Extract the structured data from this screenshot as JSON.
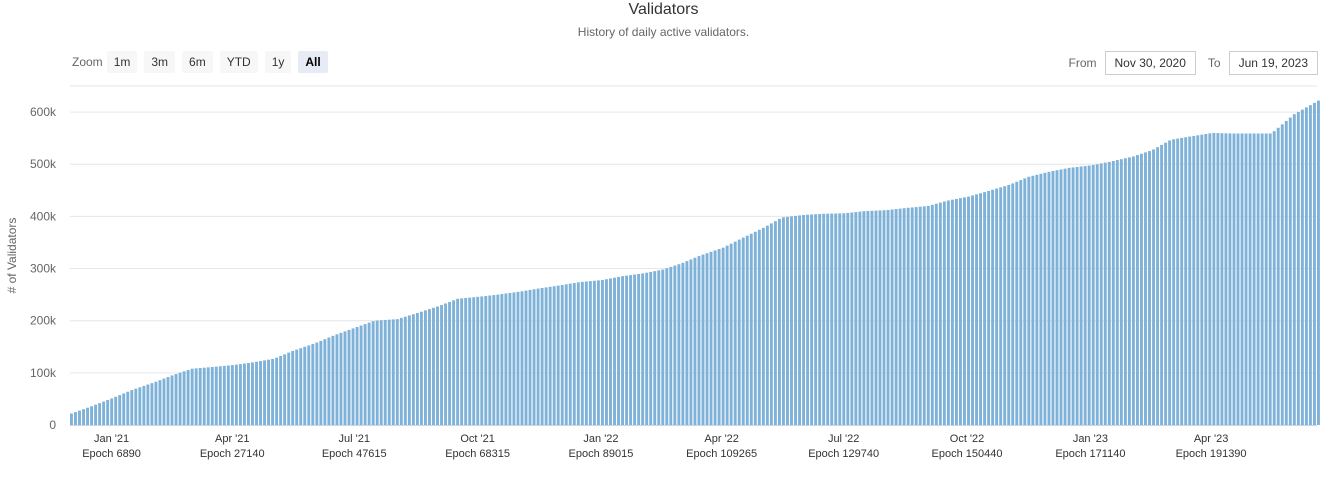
{
  "title": "Validators",
  "subtitle": "History of daily active validators.",
  "zoom": {
    "label": "Zoom",
    "buttons": [
      "1m",
      "3m",
      "6m",
      "YTD",
      "1y",
      "All"
    ],
    "active": "All"
  },
  "range": {
    "from_label": "From",
    "from_value": "Nov 30, 2020",
    "to_label": "To",
    "to_value": "Jun 19, 2023"
  },
  "colors": {
    "bar": "#7fb2d9",
    "grid": "#e6e6e6"
  },
  "chart_data": {
    "type": "bar",
    "title": "Validators",
    "subtitle": "History of daily active validators.",
    "ylabel": "# of Validators",
    "xlabel": "",
    "ylim": [
      0,
      650000
    ],
    "yticks": [
      0,
      100000,
      200000,
      300000,
      400000,
      500000,
      600000
    ],
    "ytick_labels": [
      "0",
      "100k",
      "200k",
      "300k",
      "400k",
      "500k",
      "600k"
    ],
    "xlim": [
      "2020-12-01",
      "2023-06-19"
    ],
    "xticks": [
      {
        "date": "2021-01-01",
        "label": "Jan '21",
        "epoch": "Epoch 6890"
      },
      {
        "date": "2021-04-01",
        "label": "Apr '21",
        "epoch": "Epoch 27140"
      },
      {
        "date": "2021-07-01",
        "label": "Jul '21",
        "epoch": "Epoch 47615"
      },
      {
        "date": "2021-10-01",
        "label": "Oct '21",
        "epoch": "Epoch 68315"
      },
      {
        "date": "2022-01-01",
        "label": "Jan '22",
        "epoch": "Epoch 89015"
      },
      {
        "date": "2022-04-01",
        "label": "Apr '22",
        "epoch": "Epoch 109265"
      },
      {
        "date": "2022-07-01",
        "label": "Jul '22",
        "epoch": "Epoch 129740"
      },
      {
        "date": "2022-10-01",
        "label": "Oct '22",
        "epoch": "Epoch 150440"
      },
      {
        "date": "2023-01-01",
        "label": "Jan '23",
        "epoch": "Epoch 171140"
      },
      {
        "date": "2023-04-01",
        "label": "Apr '23",
        "epoch": "Epoch 191390"
      }
    ],
    "grid": true,
    "legend": "none",
    "series": [
      {
        "x": [
          "2020-12-01",
          "2020-12-15",
          "2021-01-01",
          "2021-01-15",
          "2021-02-01",
          "2021-02-15",
          "2021-03-01",
          "2021-03-15",
          "2021-04-01",
          "2021-04-15",
          "2021-05-01",
          "2021-05-15",
          "2021-06-01",
          "2021-06-15",
          "2021-07-01",
          "2021-07-15",
          "2021-08-01",
          "2021-08-15",
          "2021-09-01",
          "2021-09-15",
          "2021-10-01",
          "2021-10-15",
          "2021-11-01",
          "2021-11-15",
          "2021-12-01",
          "2021-12-15",
          "2022-01-01",
          "2022-01-15",
          "2022-02-01",
          "2022-02-15",
          "2022-03-01",
          "2022-03-15",
          "2022-04-01",
          "2022-04-15",
          "2022-05-01",
          "2022-05-15",
          "2022-06-01",
          "2022-06-15",
          "2022-07-01",
          "2022-07-15",
          "2022-08-01",
          "2022-08-15",
          "2022-09-01",
          "2022-09-15",
          "2022-10-01",
          "2022-10-15",
          "2022-11-01",
          "2022-11-15",
          "2022-12-01",
          "2022-12-15",
          "2023-01-01",
          "2023-01-15",
          "2023-02-01",
          "2023-02-15",
          "2023-03-01",
          "2023-03-15",
          "2023-04-01",
          "2023-04-15",
          "2023-05-01",
          "2023-05-15",
          "2023-06-01",
          "2023-06-19"
        ],
        "values": [
          22000,
          35000,
          52000,
          67000,
          82000,
          96000,
          108000,
          111000,
          115000,
          120000,
          127000,
          142000,
          157000,
          172000,
          187000,
          200000,
          203000,
          214000,
          228000,
          242000,
          246000,
          250000,
          256000,
          262000,
          268000,
          274000,
          278000,
          285000,
          291000,
          298000,
          310000,
          325000,
          340000,
          358000,
          378000,
          398000,
          403000,
          405000,
          406000,
          410000,
          412000,
          416000,
          420000,
          430000,
          438000,
          448000,
          461000,
          476000,
          486000,
          493000,
          498000,
          505000,
          515000,
          527000,
          547000,
          553000,
          560000,
          559000,
          559000,
          559000,
          596000,
          622000
        ]
      }
    ]
  }
}
